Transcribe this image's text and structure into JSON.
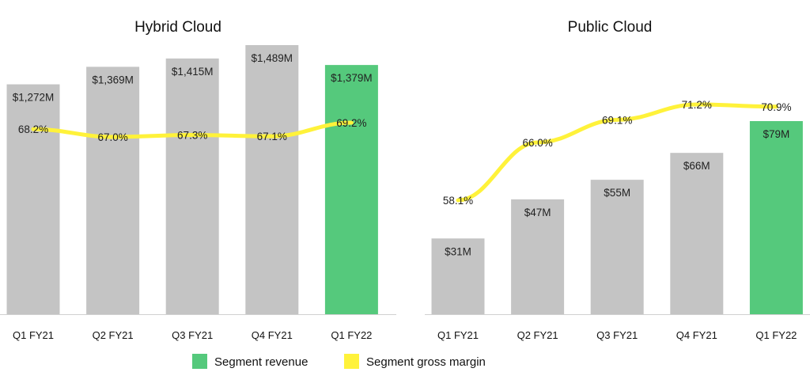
{
  "chart_data": [
    {
      "type": "bar",
      "title": "Hybrid Cloud",
      "categories": [
        "Q1 FY21",
        "Q2 FY21",
        "Q3 FY21",
        "Q4 FY21",
        "Q1 FY22"
      ],
      "series": [
        {
          "name": "Segment revenue",
          "values": [
            1272,
            1369,
            1415,
            1489,
            1379
          ],
          "labels": [
            "$1,272M",
            "$1,369M",
            "$1,415M",
            "$1,489M",
            "$1,379M"
          ],
          "colors": [
            "#c4c4c4",
            "#c4c4c4",
            "#c4c4c4",
            "#c4c4c4",
            "#55c97c"
          ]
        },
        {
          "name": "Segment gross margin",
          "type": "line",
          "values": [
            68.2,
            67.0,
            67.3,
            67.1,
            69.2
          ],
          "labels": [
            "68.2%",
            "67.0%",
            "67.3%",
            "67.1%",
            "69.2%"
          ],
          "color": "#fff23a"
        }
      ],
      "xlabel": "",
      "ylabel": ""
    },
    {
      "type": "bar",
      "title": "Public Cloud",
      "categories": [
        "Q1 FY21",
        "Q2 FY21",
        "Q3 FY21",
        "Q4 FY21",
        "Q1 FY22"
      ],
      "series": [
        {
          "name": "Segment revenue",
          "values": [
            31,
            47,
            55,
            66,
            79
          ],
          "labels": [
            "$31M",
            "$47M",
            "$55M",
            "$66M",
            "$79M"
          ],
          "colors": [
            "#c4c4c4",
            "#c4c4c4",
            "#c4c4c4",
            "#c4c4c4",
            "#55c97c"
          ]
        },
        {
          "name": "Segment gross margin",
          "type": "line",
          "values": [
            58.1,
            66.0,
            69.1,
            71.2,
            70.9
          ],
          "labels": [
            "58.1%",
            "66.0%",
            "69.1%",
            "71.2%",
            "70.9%"
          ],
          "color": "#fff23a"
        }
      ],
      "xlabel": "",
      "ylabel": ""
    }
  ],
  "legend": {
    "items": [
      {
        "label": "Segment revenue",
        "color": "#55c97c"
      },
      {
        "label": "Segment gross margin",
        "color": "#fff23a"
      }
    ]
  }
}
